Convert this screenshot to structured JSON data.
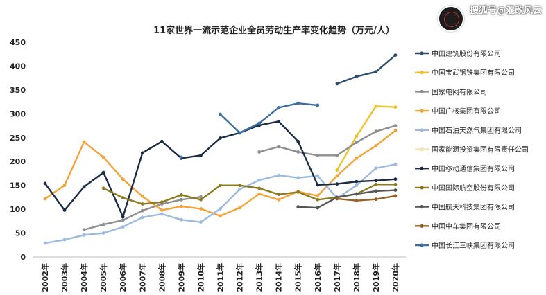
{
  "watermark": {
    "text": "搜狐号@混改风云"
  },
  "chart_data": {
    "type": "line",
    "title": "11家世界一流示范企业全员劳动生产率变化趋势（万元/人）",
    "categories": [
      "2002年",
      "2003年",
      "2004年",
      "2005年",
      "2006年",
      "2007年",
      "2008年",
      "2009年",
      "2010年",
      "2011年",
      "2012年",
      "2013年",
      "2014年",
      "2015年",
      "2016年",
      "2017年",
      "2018年",
      "2019年",
      "2020年"
    ],
    "ylim": [
      0,
      450
    ],
    "yticks": [
      0,
      50,
      100,
      150,
      200,
      250,
      300,
      350,
      400,
      450
    ],
    "grid": false,
    "legend_position": "right",
    "series": [
      {
        "name": "中国建筑股份有限公司",
        "color": "#2e4d6e",
        "values": [
          null,
          null,
          null,
          null,
          null,
          null,
          null,
          null,
          null,
          null,
          null,
          null,
          null,
          null,
          null,
          363,
          378,
          388,
          423
        ]
      },
      {
        "name": "中国宝武钢铁集团有限公司",
        "color": "#f2c12e",
        "values": [
          null,
          null,
          null,
          null,
          null,
          null,
          null,
          null,
          null,
          null,
          null,
          null,
          null,
          null,
          null,
          182,
          253,
          316,
          314
        ]
      },
      {
        "name": "国家电网有限公司",
        "color": "#8f8f8f",
        "values": [
          null,
          null,
          57,
          68,
          77,
          97,
          111,
          120,
          126,
          null,
          null,
          220,
          231,
          220,
          213,
          213,
          240,
          263,
          275
        ]
      },
      {
        "name": "中国广核集团有限公司",
        "color": "#f2a33a",
        "values": [
          122,
          150,
          241,
          209,
          163,
          127,
          98,
          106,
          101,
          86,
          103,
          132,
          120,
          137,
          128,
          170,
          207,
          233,
          265
        ]
      },
      {
        "name": "中国石油天然气集团有限公司",
        "color": "#9cbadd",
        "values": [
          29,
          36,
          46,
          50,
          63,
          83,
          90,
          78,
          73,
          101,
          142,
          161,
          171,
          166,
          170,
          123,
          150,
          186,
          194
        ]
      },
      {
        "name": "国家能源投资集团有限责任公司",
        "color": "#f3e3b6",
        "values": [
          null,
          null,
          null,
          null,
          null,
          null,
          null,
          null,
          null,
          null,
          null,
          null,
          null,
          null,
          null,
          null,
          null,
          null,
          null
        ]
      },
      {
        "name": "中国移动通信集团有限公司",
        "color": "#1b2b45",
        "values": [
          154,
          98,
          147,
          177,
          84,
          218,
          242,
          207,
          213,
          249,
          260,
          276,
          284,
          242,
          151,
          153,
          158,
          160,
          163
        ]
      },
      {
        "name": "中国国际航空股份有限公司",
        "color": "#8c7a1e",
        "values": [
          null,
          null,
          null,
          144,
          124,
          111,
          115,
          130,
          120,
          150,
          150,
          144,
          131,
          136,
          120,
          125,
          132,
          152,
          152
        ]
      },
      {
        "name": "中国航天科技集团有限公司",
        "color": "#555555",
        "values": [
          null,
          null,
          null,
          null,
          null,
          null,
          null,
          null,
          null,
          null,
          null,
          null,
          null,
          105,
          103,
          125,
          132,
          138,
          140
        ]
      },
      {
        "name": "中国中车集团有限公司",
        "color": "#94622a",
        "values": [
          null,
          null,
          null,
          null,
          null,
          null,
          null,
          null,
          null,
          null,
          null,
          null,
          null,
          null,
          null,
          122,
          118,
          121,
          128
        ]
      },
      {
        "name": "中国长江三峡集团有限公司",
        "color": "#3b6e9e",
        "values": [
          null,
          null,
          null,
          null,
          null,
          null,
          null,
          209,
          null,
          299,
          260,
          280,
          313,
          322,
          318,
          null,
          null,
          null,
          null
        ]
      }
    ]
  }
}
